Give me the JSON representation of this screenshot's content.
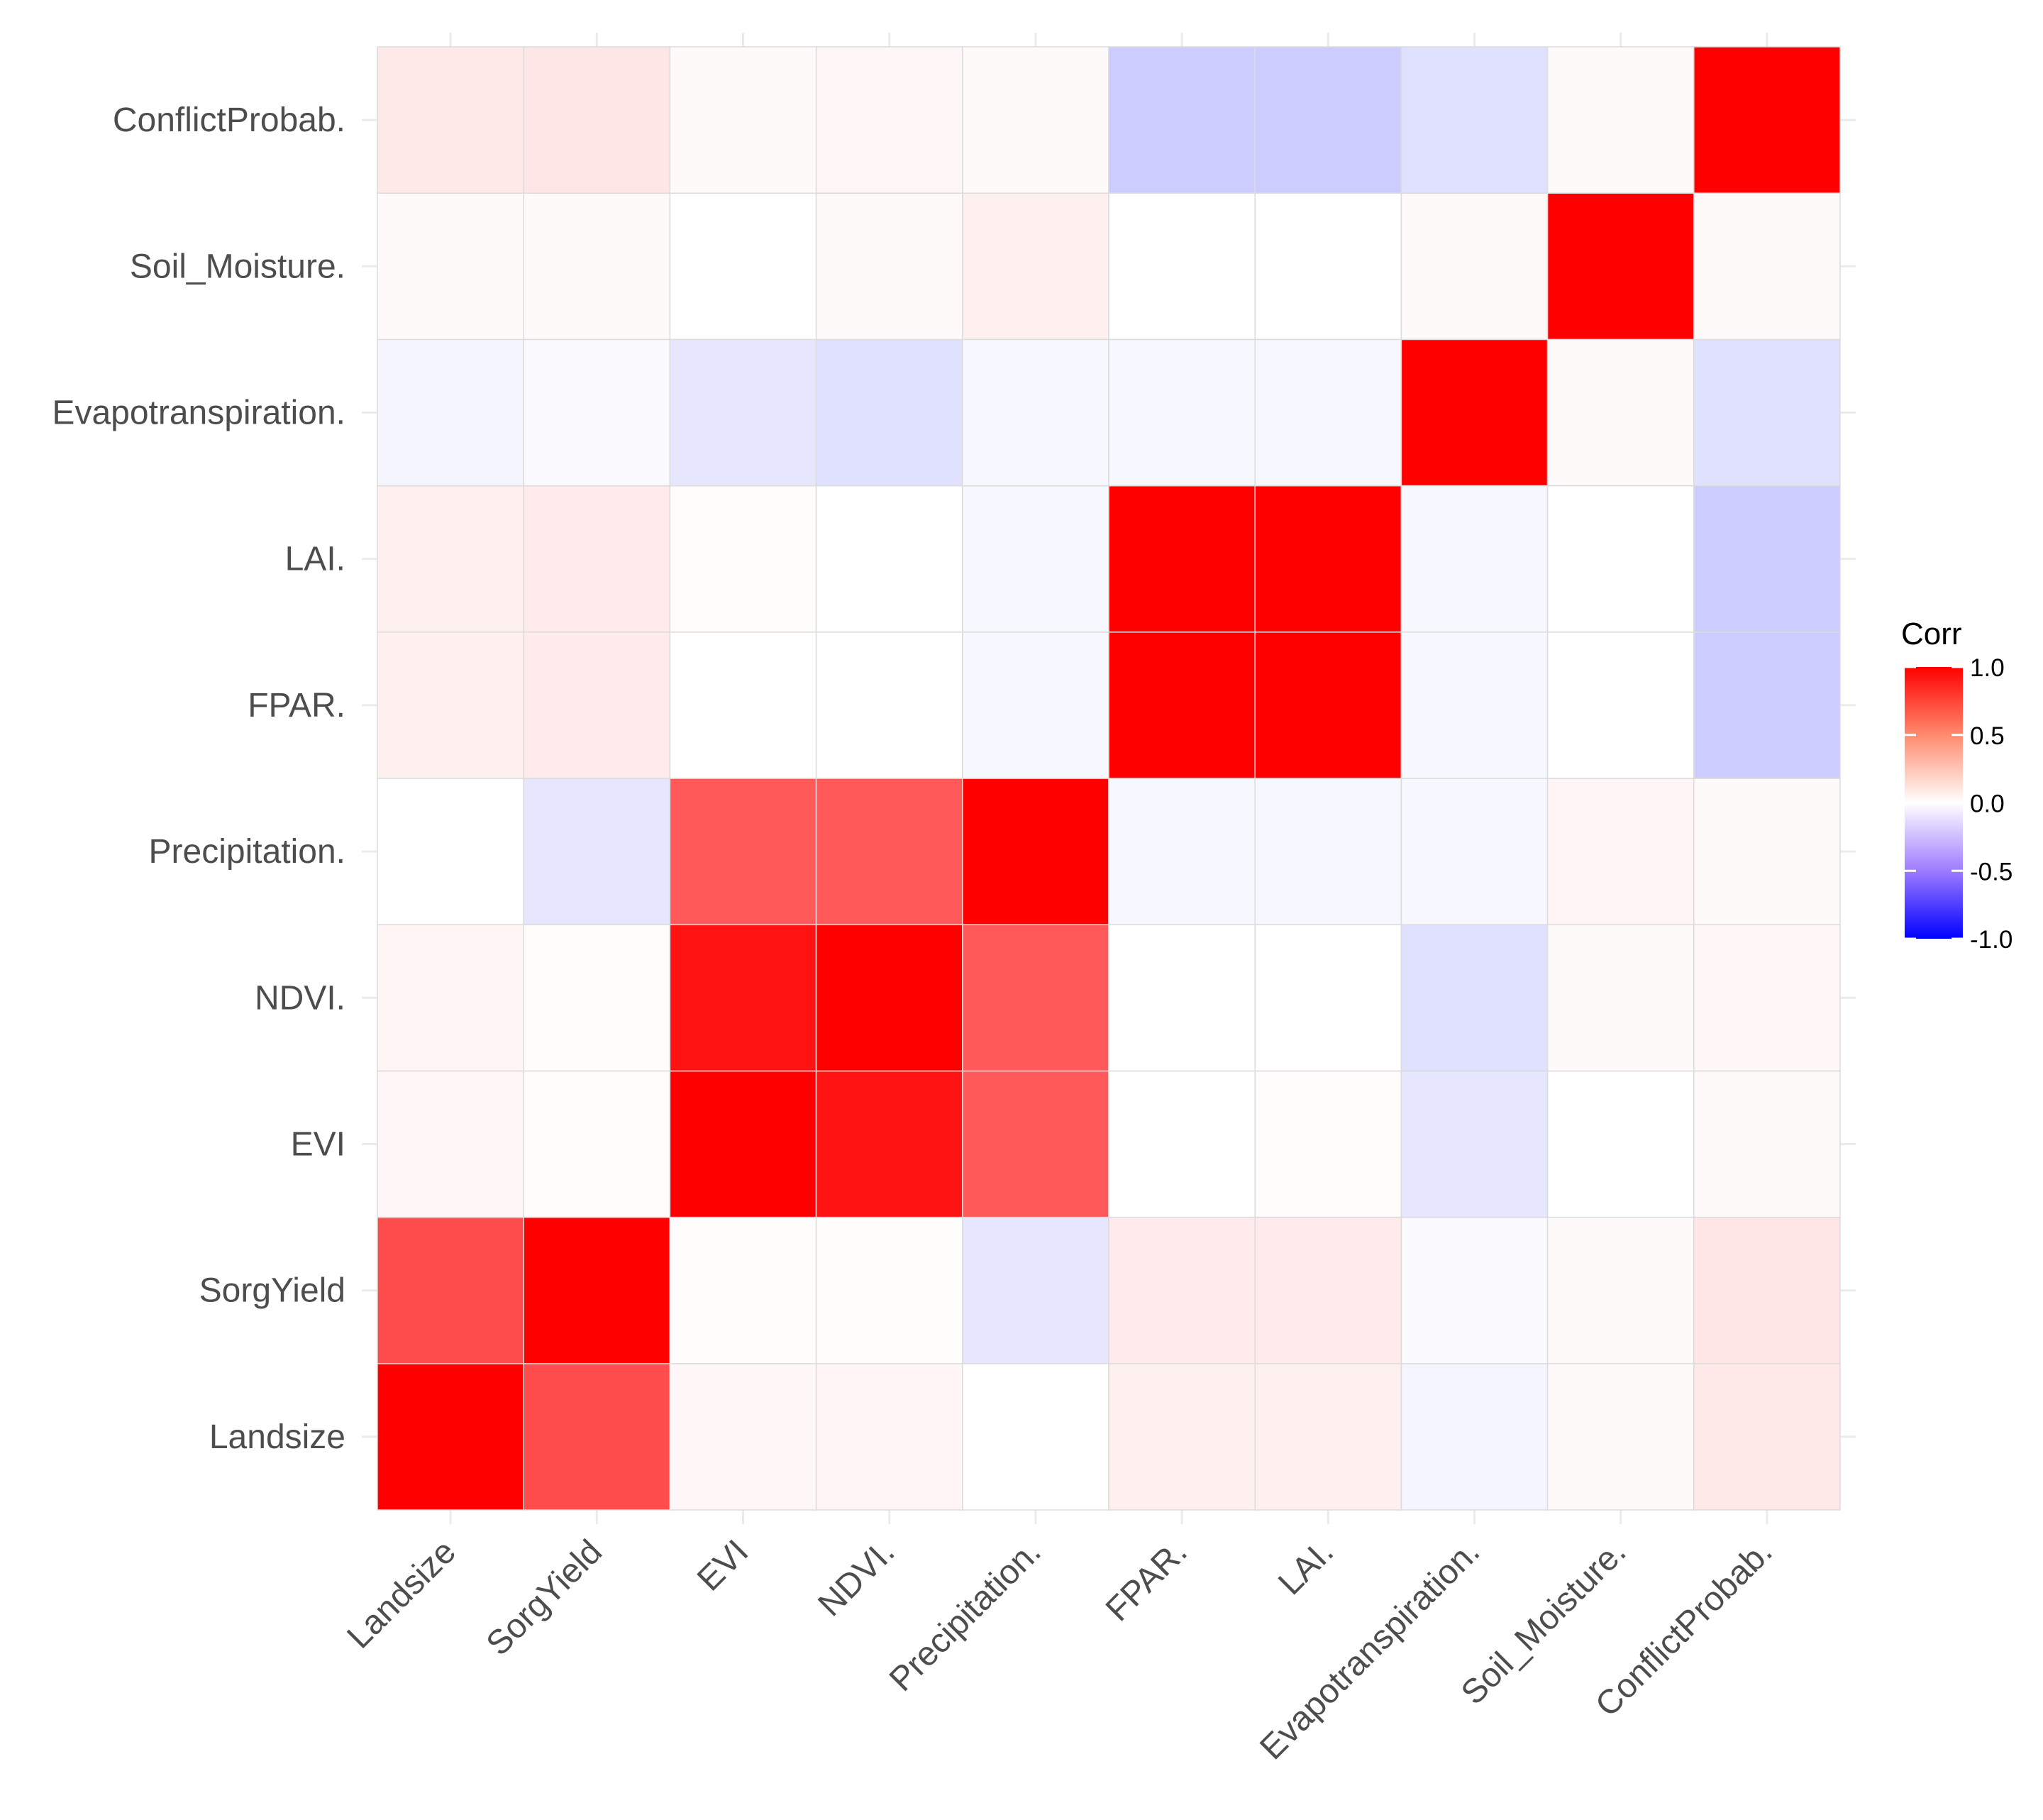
{
  "chart_data": {
    "type": "heatmap",
    "title": "",
    "xlabel": "",
    "ylabel": "",
    "variables": [
      "Landsize",
      "SorgYield",
      "EVI",
      "NDVI.",
      "Precipitation.",
      "FPAR.",
      "LAI.",
      "Evapotranspiration.",
      "Soil_Moisture.",
      "ConflictProbab."
    ],
    "x_tick_labels": [
      "Landsize",
      "SorgYield",
      "EVI",
      "NDVI.",
      "Precipitation.",
      "FPAR.",
      "LAI.",
      "Evapotranspiration.",
      "Soil_Moisture.",
      "ConflictProbab."
    ],
    "y_tick_labels": [
      "Landsize",
      "SorgYield",
      "EVI",
      "NDVI.",
      "Precipitation.",
      "FPAR.",
      "LAI.",
      "Evapotranspiration.",
      "Soil_Moisture.",
      "ConflictProbab."
    ],
    "matrix": [
      [
        1.0,
        0.7,
        0.03,
        0.04,
        0.0,
        0.06,
        0.06,
        -0.04,
        0.02,
        0.09
      ],
      [
        0.7,
        1.0,
        0.01,
        0.01,
        -0.1,
        0.08,
        0.08,
        -0.02,
        0.02,
        0.1
      ],
      [
        0.03,
        0.01,
        1.0,
        0.93,
        0.65,
        0.0,
        0.01,
        -0.1,
        0.0,
        0.02
      ],
      [
        0.04,
        0.01,
        0.93,
        1.0,
        0.65,
        0.0,
        0.0,
        -0.12,
        0.02,
        0.03
      ],
      [
        0.0,
        -0.1,
        0.65,
        0.65,
        1.0,
        -0.03,
        -0.03,
        -0.03,
        0.04,
        0.02
      ],
      [
        0.06,
        0.08,
        0.0,
        0.0,
        -0.03,
        1.0,
        1.0,
        -0.03,
        0.0,
        -0.2
      ],
      [
        0.06,
        0.08,
        0.01,
        0.0,
        -0.03,
        1.0,
        1.0,
        -0.03,
        0.0,
        -0.2
      ],
      [
        -0.04,
        -0.02,
        -0.1,
        -0.12,
        -0.03,
        -0.03,
        -0.03,
        1.0,
        0.02,
        -0.12
      ],
      [
        0.02,
        0.02,
        0.0,
        0.02,
        0.06,
        0.0,
        0.0,
        0.02,
        1.0,
        0.02
      ],
      [
        0.09,
        0.1,
        0.02,
        0.03,
        0.02,
        -0.2,
        -0.2,
        -0.12,
        0.02,
        1.0
      ]
    ],
    "color_scale": {
      "low": "#0000FF",
      "mid": "#FFFFFF",
      "high": "#FF0000",
      "limits": [
        -1,
        1
      ]
    },
    "legend": {
      "title": "Corr",
      "ticks": [
        1.0,
        0.5,
        0.0,
        -0.5,
        -1.0
      ],
      "tick_labels": [
        "1.0",
        "0.5",
        "0.0",
        "-0.5",
        "-1.0"
      ],
      "position": "right"
    },
    "grid": true
  }
}
